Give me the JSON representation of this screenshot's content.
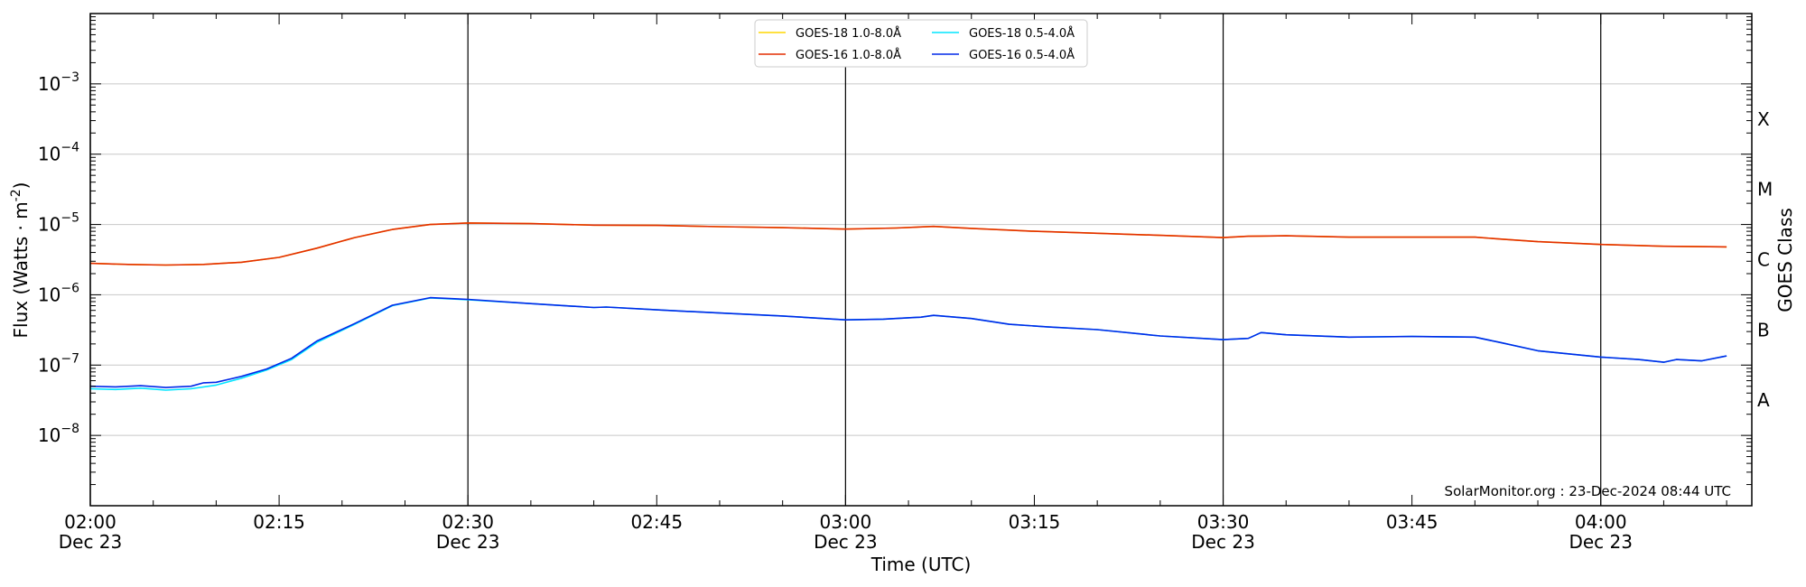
{
  "chart_data": {
    "type": "line",
    "xlabel": "Time (UTC)",
    "ylabel": "Flux (Watts · m",
    "ylabel_sup": "-2",
    "ylabel_close": ")",
    "right_axis_label": "GOES Class",
    "watermark": "SolarMonitor.org : 23-Dec-2024 08:44 UTC",
    "y_scale": "log",
    "ylim": [
      1e-09,
      0.01
    ],
    "xlim": [
      "02:00",
      "04:12"
    ],
    "grid": "y",
    "legend_position": "top-center",
    "x_ticks": [
      {
        "time": "02:00",
        "label": "02:00",
        "sublabel": "Dec 23",
        "day_line": true
      },
      {
        "time": "02:15",
        "label": "02:15",
        "sublabel": "",
        "day_line": false
      },
      {
        "time": "02:30",
        "label": "02:30",
        "sublabel": "Dec 23",
        "day_line": true
      },
      {
        "time": "02:45",
        "label": "02:45",
        "sublabel": "",
        "day_line": false
      },
      {
        "time": "03:00",
        "label": "03:00",
        "sublabel": "Dec 23",
        "day_line": true
      },
      {
        "time": "03:15",
        "label": "03:15",
        "sublabel": "",
        "day_line": false
      },
      {
        "time": "03:30",
        "label": "03:30",
        "sublabel": "Dec 23",
        "day_line": true
      },
      {
        "time": "03:45",
        "label": "03:45",
        "sublabel": "",
        "day_line": false
      },
      {
        "time": "04:00",
        "label": "04:00",
        "sublabel": "Dec 23",
        "day_line": true
      }
    ],
    "y_ticks": [
      {
        "exp": -8,
        "label": "10"
      },
      {
        "exp": -7,
        "label": "10"
      },
      {
        "exp": -6,
        "label": "10"
      },
      {
        "exp": -5,
        "label": "10"
      },
      {
        "exp": -4,
        "label": "10"
      },
      {
        "exp": -3,
        "label": "10"
      }
    ],
    "goes_classes": [
      {
        "label": "A",
        "exp": -7.5
      },
      {
        "label": "B",
        "exp": -6.5
      },
      {
        "label": "C",
        "exp": -5.5
      },
      {
        "label": "M",
        "exp": -4.5
      },
      {
        "label": "X",
        "exp": -3.5
      }
    ],
    "series": [
      {
        "name": "GOES-18 1.0-8.0Å",
        "color": "#ffd700",
        "x": [
          "02:00",
          "02:03",
          "02:06",
          "02:09",
          "02:12",
          "02:15",
          "02:18",
          "02:21",
          "02:24",
          "02:27",
          "02:30",
          "02:35",
          "02:40",
          "02:45",
          "02:50",
          "02:55",
          "03:00",
          "03:04",
          "03:07",
          "03:10",
          "03:15",
          "03:20",
          "03:25",
          "03:30",
          "03:32",
          "03:35",
          "03:40",
          "03:45",
          "03:50",
          "03:52",
          "03:55",
          "04:00",
          "04:05",
          "04:10"
        ],
        "y": [
          2.8e-06,
          2.7e-06,
          2.65e-06,
          2.7e-06,
          2.9e-06,
          3.4e-06,
          4.6e-06,
          6.5e-06,
          8.5e-06,
          1e-05,
          1.05e-05,
          1.03e-05,
          9.8e-06,
          9.7e-06,
          9.3e-06,
          9e-06,
          8.6e-06,
          8.9e-06,
          9.4e-06,
          8.8e-06,
          8e-06,
          7.5e-06,
          7e-06,
          6.5e-06,
          6.8e-06,
          6.9e-06,
          6.6e-06,
          6.6e-06,
          6.6e-06,
          6.2e-06,
          5.7e-06,
          5.2e-06,
          4.9e-06,
          4.8e-06
        ]
      },
      {
        "name": "GOES-18 0.5-4.0Å",
        "color": "#00e5ff",
        "x": [
          "02:00",
          "02:02",
          "02:04",
          "02:06",
          "02:08",
          "02:10",
          "02:12",
          "02:14",
          "02:16",
          "02:18",
          "02:21",
          "02:24",
          "02:27",
          "02:30",
          "02:35",
          "02:40",
          "02:41",
          "02:45",
          "02:50",
          "02:55",
          "03:00",
          "03:03",
          "03:06",
          "03:07",
          "03:10",
          "03:13",
          "03:16",
          "03:20",
          "03:25",
          "03:30",
          "03:32",
          "03:33",
          "03:35",
          "03:40",
          "03:45",
          "03:50",
          "03:52",
          "03:55",
          "04:00",
          "04:03",
          "04:05",
          "04:06",
          "04:08",
          "04:10"
        ],
        "y": [
          4.6e-08,
          4.5e-08,
          4.7e-08,
          4.4e-08,
          4.6e-08,
          5.2e-08,
          6.5e-08,
          8.5e-08,
          1.2e-07,
          2.1e-07,
          3.8e-07,
          7e-07,
          9e-07,
          8.5e-07,
          7.5e-07,
          6.6e-07,
          6.7e-07,
          6.1e-07,
          5.5e-07,
          5e-07,
          4.4e-07,
          4.5e-07,
          4.8e-07,
          5.1e-07,
          4.6e-07,
          3.8e-07,
          3.5e-07,
          3.2e-07,
          2.6e-07,
          2.3e-07,
          2.4e-07,
          2.9e-07,
          2.7e-07,
          2.5e-07,
          2.55e-07,
          2.5e-07,
          2.1e-07,
          1.6e-07,
          1.3e-07,
          1.2e-07,
          1.1e-07,
          1.2e-07,
          1.15e-07,
          1.35e-07
        ]
      },
      {
        "name": "GOES-16 1.0-8.0Å",
        "color": "#e32d00",
        "x": [
          "02:00",
          "02:03",
          "02:06",
          "02:09",
          "02:12",
          "02:15",
          "02:18",
          "02:21",
          "02:24",
          "02:27",
          "02:30",
          "02:35",
          "02:40",
          "02:45",
          "02:50",
          "02:55",
          "03:00",
          "03:04",
          "03:07",
          "03:10",
          "03:15",
          "03:20",
          "03:25",
          "03:30",
          "03:32",
          "03:35",
          "03:40",
          "03:45",
          "03:50",
          "03:52",
          "03:55",
          "04:00",
          "04:05",
          "04:10"
        ],
        "y": [
          2.8e-06,
          2.7e-06,
          2.65e-06,
          2.7e-06,
          2.9e-06,
          3.4e-06,
          4.6e-06,
          6.5e-06,
          8.5e-06,
          1e-05,
          1.05e-05,
          1.03e-05,
          9.8e-06,
          9.7e-06,
          9.3e-06,
          9e-06,
          8.6e-06,
          8.9e-06,
          9.4e-06,
          8.8e-06,
          8e-06,
          7.5e-06,
          7e-06,
          6.5e-06,
          6.8e-06,
          6.9e-06,
          6.6e-06,
          6.6e-06,
          6.6e-06,
          6.2e-06,
          5.7e-06,
          5.2e-06,
          4.9e-06,
          4.8e-06
        ]
      },
      {
        "name": "GOES-16 0.5-4.0Å",
        "color": "#0028e8",
        "x": [
          "02:00",
          "02:02",
          "02:04",
          "02:06",
          "02:08",
          "02:09",
          "02:10",
          "02:12",
          "02:14",
          "02:16",
          "02:18",
          "02:21",
          "02:24",
          "02:27",
          "02:30",
          "02:35",
          "02:40",
          "02:41",
          "02:45",
          "02:50",
          "02:55",
          "03:00",
          "03:03",
          "03:06",
          "03:07",
          "03:10",
          "03:13",
          "03:16",
          "03:20",
          "03:25",
          "03:30",
          "03:32",
          "03:33",
          "03:35",
          "03:40",
          "03:45",
          "03:50",
          "03:52",
          "03:55",
          "04:00",
          "04:03",
          "04:05",
          "04:06",
          "04:08",
          "04:10"
        ],
        "y": [
          5e-08,
          4.9e-08,
          5.1e-08,
          4.8e-08,
          5e-08,
          5.6e-08,
          5.7e-08,
          6.9e-08,
          8.8e-08,
          1.25e-07,
          2.2e-07,
          3.9e-07,
          7.1e-07,
          9.1e-07,
          8.6e-07,
          7.5e-07,
          6.6e-07,
          6.7e-07,
          6.1e-07,
          5.5e-07,
          5e-07,
          4.4e-07,
          4.5e-07,
          4.8e-07,
          5.1e-07,
          4.6e-07,
          3.8e-07,
          3.5e-07,
          3.2e-07,
          2.6e-07,
          2.3e-07,
          2.4e-07,
          2.9e-07,
          2.7e-07,
          2.5e-07,
          2.55e-07,
          2.5e-07,
          2.1e-07,
          1.6e-07,
          1.3e-07,
          1.2e-07,
          1.1e-07,
          1.2e-07,
          1.15e-07,
          1.35e-07
        ]
      }
    ]
  }
}
